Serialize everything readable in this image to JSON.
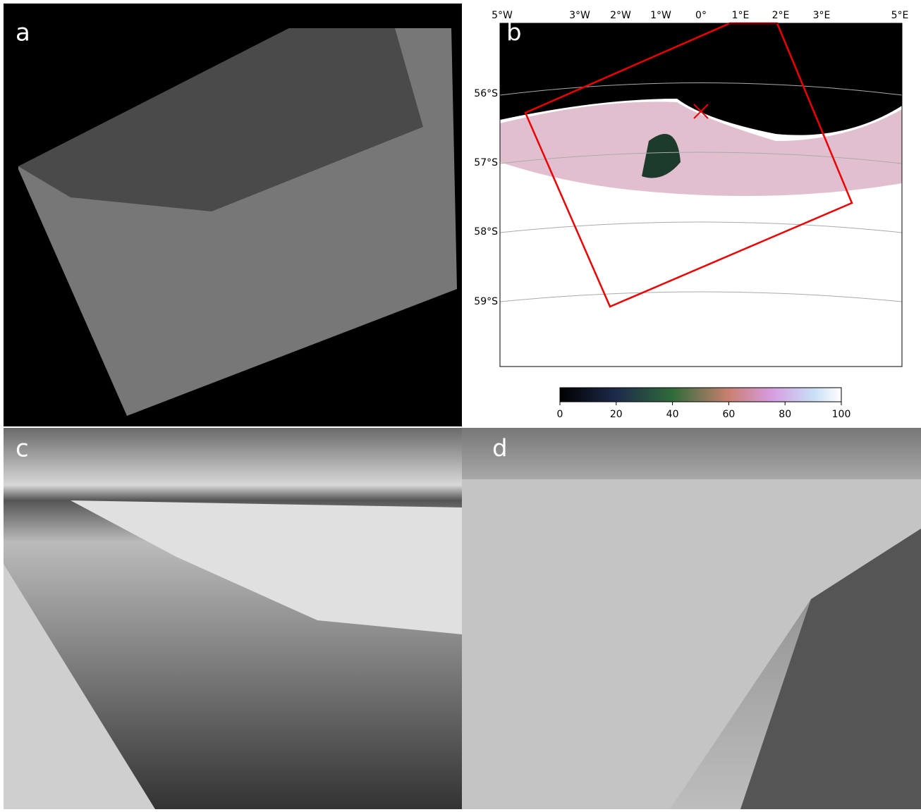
{
  "panels": [
    {
      "label": "a"
    },
    {
      "label": "b"
    },
    {
      "label": "c"
    },
    {
      "label": "d"
    }
  ],
  "map": {
    "lon_labels": [
      "5°W",
      "3°W",
      "2°W",
      "1°W",
      "0°",
      "1°E",
      "2°E",
      "3°E",
      "5°E"
    ],
    "lat_labels": [
      "56°S",
      "57°S",
      "58°S",
      "59°S"
    ],
    "colorbar": {
      "lim": [
        0,
        100
      ],
      "ticks": [
        0,
        20,
        40,
        60,
        80,
        100
      ]
    }
  }
}
